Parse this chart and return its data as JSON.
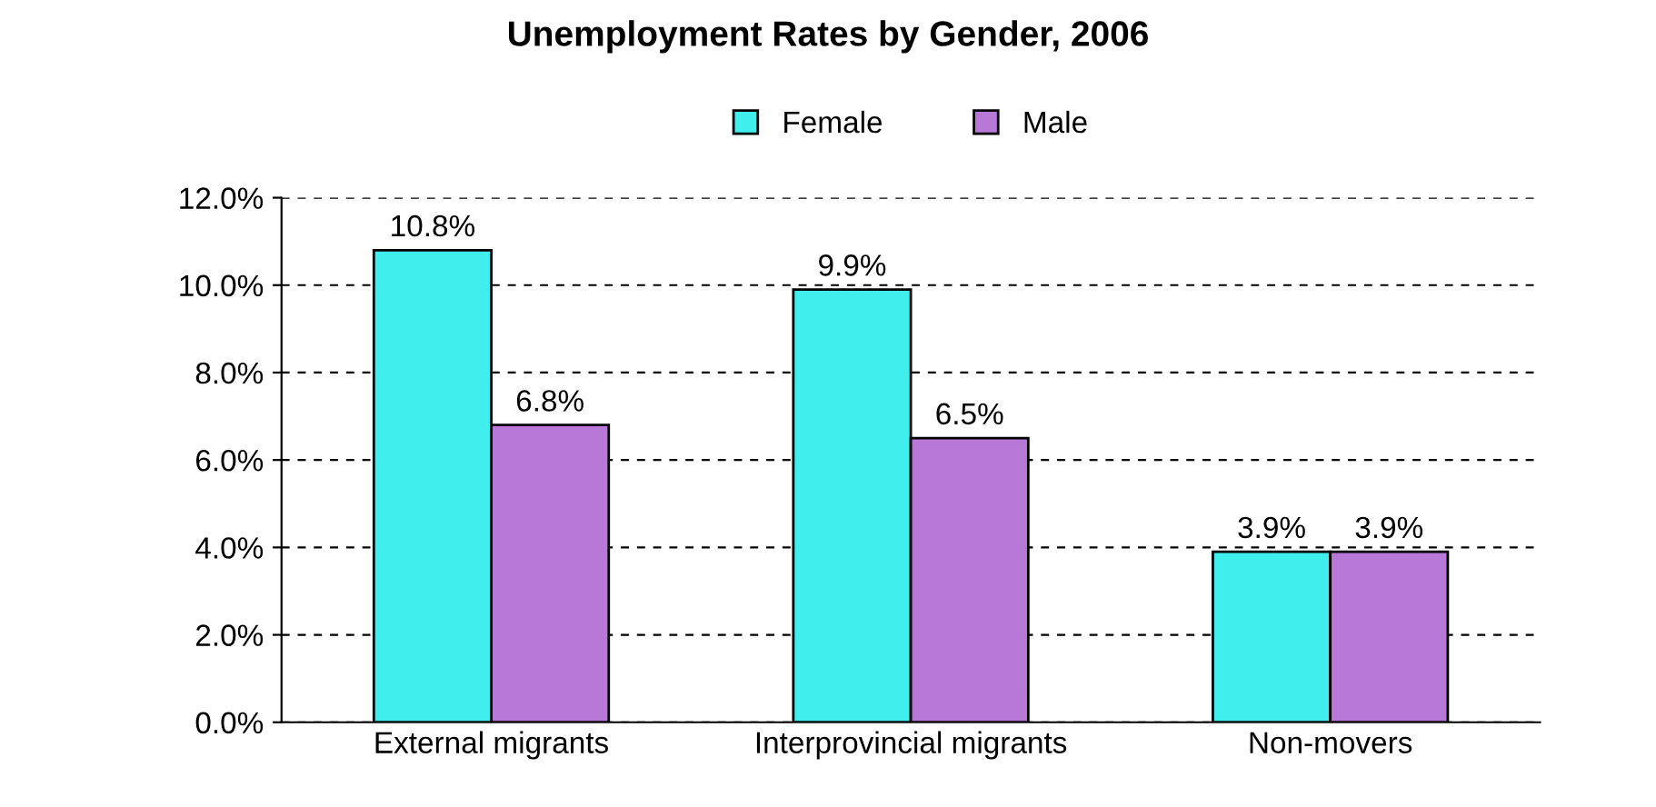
{
  "chart_data": {
    "type": "bar",
    "title": "Unemployment Rates by Gender, 2006",
    "categories": [
      "External migrants",
      "Interprovincial migrants",
      "Non-movers"
    ],
    "series": [
      {
        "name": "Female",
        "color": "#40eeee",
        "values": [
          10.8,
          9.9,
          3.9
        ],
        "value_labels": [
          "10.8%",
          "9.9%",
          "3.9%"
        ]
      },
      {
        "name": "Male",
        "color": "#b878d8",
        "values": [
          6.8,
          6.5,
          3.9
        ],
        "value_labels": [
          "6.8%",
          "6.5%",
          "3.9%"
        ]
      }
    ],
    "ylim": [
      0,
      12
    ],
    "yticks": [
      {
        "value": 0,
        "label": "0.0%"
      },
      {
        "value": 2,
        "label": "2.0%"
      },
      {
        "value": 4,
        "label": "4.0%"
      },
      {
        "value": 6,
        "label": "6.0%"
      },
      {
        "value": 8,
        "label": "8.0%"
      },
      {
        "value": 10,
        "label": "10.0%"
      },
      {
        "value": 12,
        "label": "12.0%"
      }
    ],
    "grid": "y",
    "legend": "top"
  }
}
